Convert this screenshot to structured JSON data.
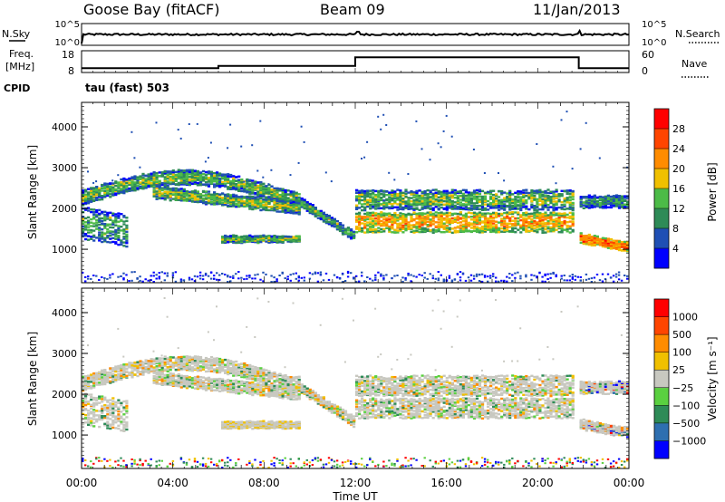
{
  "header": {
    "station": "Goose Bay (fitACF)",
    "beam": "Beam 09",
    "date": "11/Jan/2013"
  },
  "noise_panel": {
    "left_label": "N.Sky",
    "right_label": "N.Search",
    "left_ticks": [
      "10^5",
      "10^0"
    ],
    "right_ticks": [
      "10^5",
      "10^0"
    ]
  },
  "freq_panel": {
    "left_label_line1": "Freq.",
    "left_label_line2": "[MHz]",
    "cpid_label": "CPID",
    "right_label": "Nave",
    "left_ticks": [
      "18",
      "8"
    ],
    "right_ticks": [
      "60",
      "0"
    ],
    "mode_text": "tau (fast) 503"
  },
  "power_panel": {
    "ylabel": "Slant Range [km]",
    "cbar_label": "Power [dB]",
    "cbar_ticks": [
      "28",
      "24",
      "20",
      "16",
      "12",
      "8",
      "4"
    ],
    "cbar_colors": [
      "#0000ff",
      "#1f4fb4",
      "#2e8b57",
      "#4cbb47",
      "#f0c000",
      "#ff8c00",
      "#ff4500",
      "#ff0000"
    ],
    "yticks": [
      "4000",
      "3000",
      "2000",
      "1000"
    ]
  },
  "velocity_panel": {
    "ylabel": "Slant Range [km]",
    "cbar_label": "Velocity [m s⁻¹]",
    "cbar_ticks": [
      "1000",
      "500",
      "100",
      "25",
      "−25",
      "−100",
      "−500",
      "−1000"
    ],
    "cbar_colors": [
      "#0000ff",
      "#2e6fb0",
      "#2e8b57",
      "#5ad040",
      "#c8c8c0",
      "#f0c000",
      "#ff8c00",
      "#ff4500",
      "#ff0000"
    ],
    "yticks": [
      "4000",
      "3000",
      "2000",
      "1000"
    ]
  },
  "xaxis": {
    "label": "Time UT",
    "ticks": [
      "00:00",
      "04:00",
      "08:00",
      "12:00",
      "16:00",
      "20:00",
      "00:00"
    ]
  },
  "chart_data": [
    {
      "type": "line",
      "name": "noise",
      "x": [
        0,
        12,
        21.8,
        24
      ],
      "y_range_log": [
        0,
        5
      ]
    },
    {
      "type": "line",
      "name": "frequency",
      "x": [
        0,
        6,
        12,
        21.8,
        24
      ],
      "y": [
        10,
        11,
        15,
        10,
        10
      ],
      "ylim": [
        8,
        18
      ],
      "xlim": [
        0,
        24
      ]
    },
    {
      "type": "heatmap",
      "name": "power",
      "xlim": [
        0,
        24
      ],
      "ylim": [
        180,
        4600
      ],
      "zlim": [
        0,
        30
      ]
    },
    {
      "type": "heatmap",
      "name": "velocity",
      "xlim": [
        0,
        24
      ],
      "ylim": [
        180,
        4600
      ],
      "zlim": [
        -1000,
        1000
      ]
    }
  ]
}
